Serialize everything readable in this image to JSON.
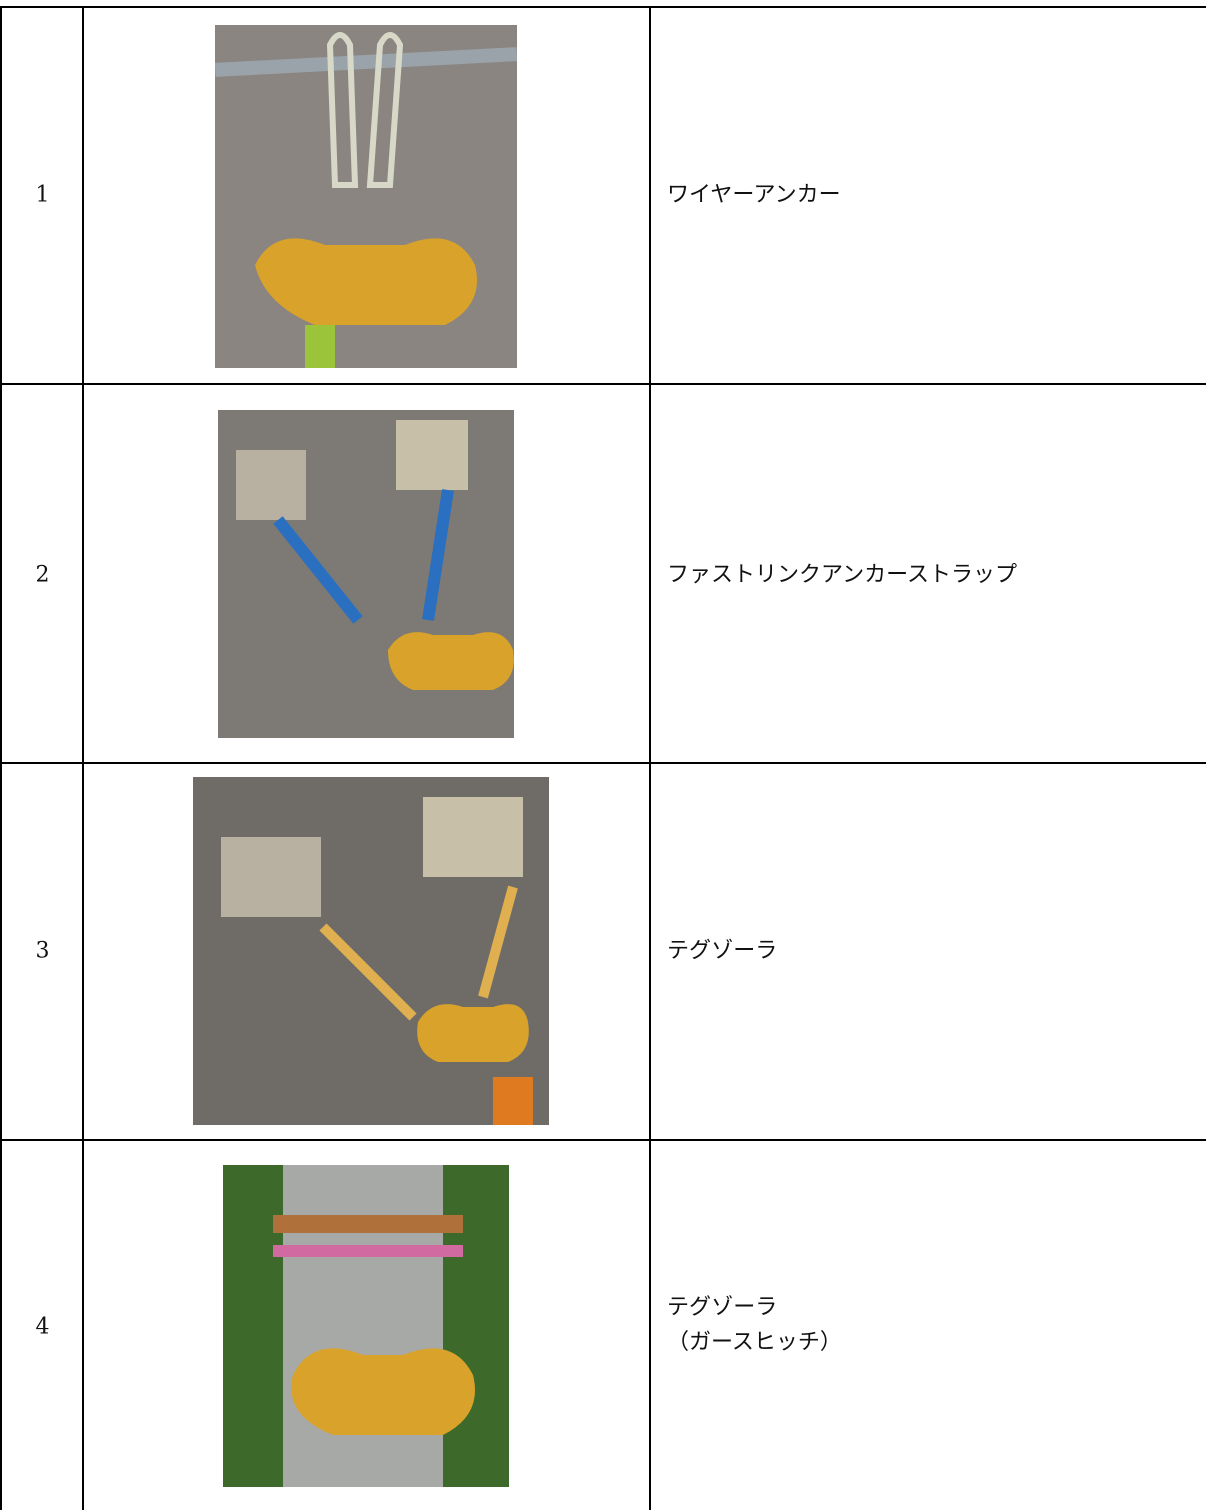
{
  "table": {
    "rows": [
      {
        "number": "1",
        "label": [
          "ワイヤーアンカー"
        ]
      },
      {
        "number": "2",
        "label": [
          "ファストリンクアンカーストラップ"
        ]
      },
      {
        "number": "3",
        "label": [
          "テグゾーラ"
        ]
      },
      {
        "number": "4",
        "label": [
          "テグゾーラ",
          "（ガースヒッチ）"
        ]
      }
    ]
  }
}
